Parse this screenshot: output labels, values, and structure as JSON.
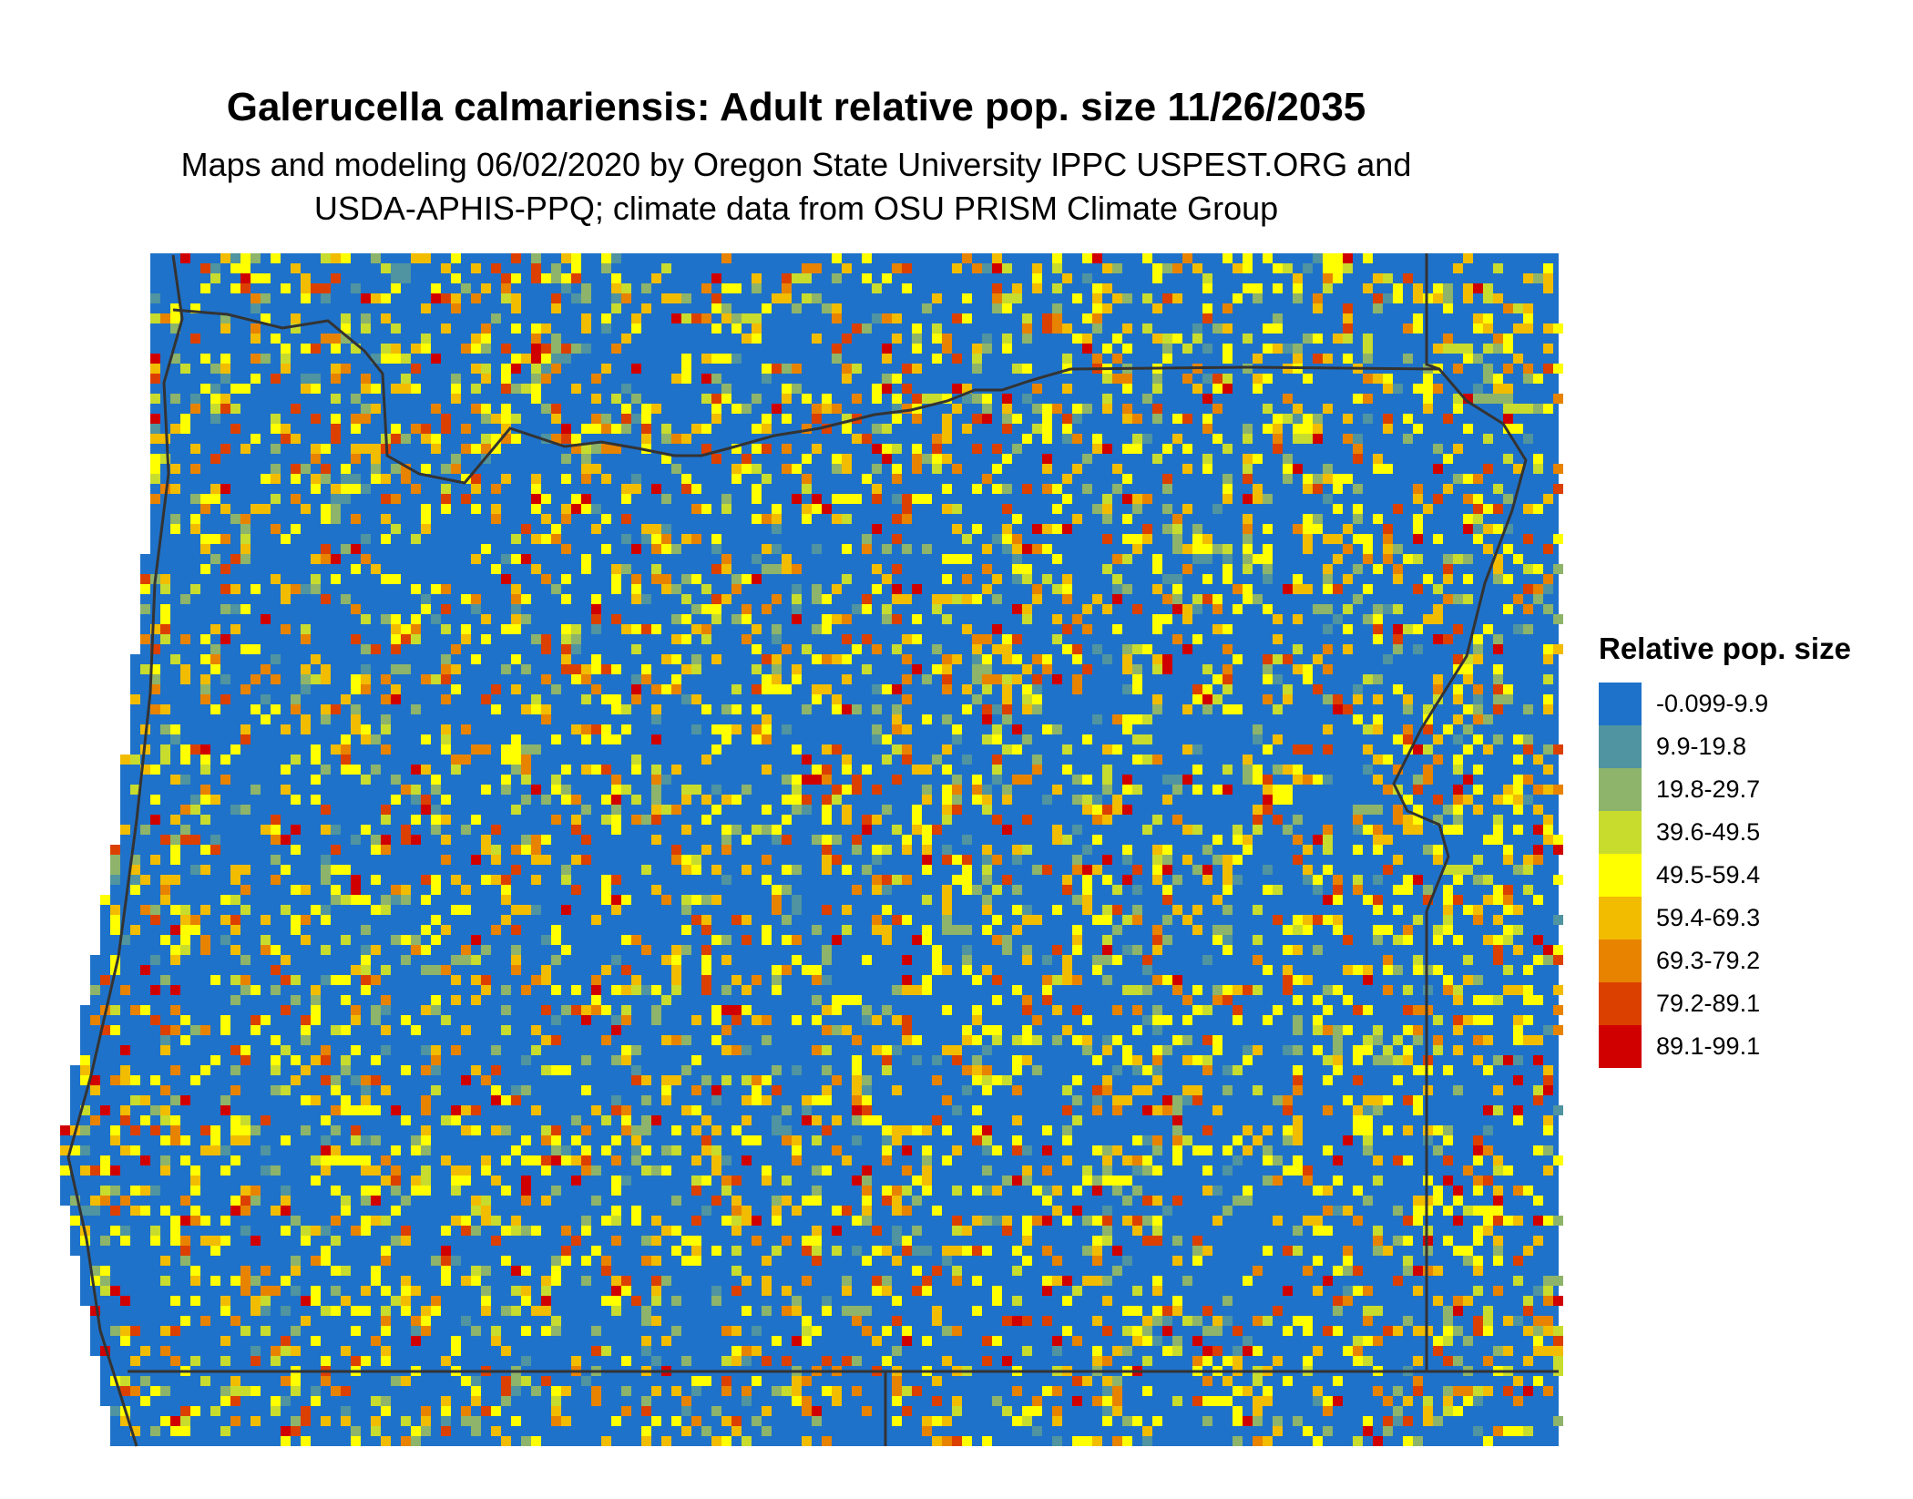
{
  "title": "Galerucella calmariensis: Adult relative pop. size 11/26/2035",
  "subtitle": [
    "Maps and modeling 06/02/2020 by Oregon State University IPPC USPEST.ORG and",
    "USDA-APHIS-PPQ; climate data from OSU PRISM Climate Group"
  ],
  "legend": {
    "title": "Relative pop. size",
    "items": [
      {
        "label": "-0.099-9.9",
        "color": "#1f72c9"
      },
      {
        "label": "9.9-19.8",
        "color": "#4f94a0"
      },
      {
        "label": "19.8-29.7",
        "color": "#8db46a"
      },
      {
        "label": "39.6-49.5",
        "color": "#c8dc2e"
      },
      {
        "label": "49.5-59.4",
        "color": "#ffff00"
      },
      {
        "label": "59.4-69.3",
        "color": "#f2bc00"
      },
      {
        "label": "69.3-79.2",
        "color": "#e88300"
      },
      {
        "label": "79.2-89.1",
        "color": "#dc4000"
      },
      {
        "label": "89.1-99.1",
        "color": "#d00000"
      }
    ]
  }
}
